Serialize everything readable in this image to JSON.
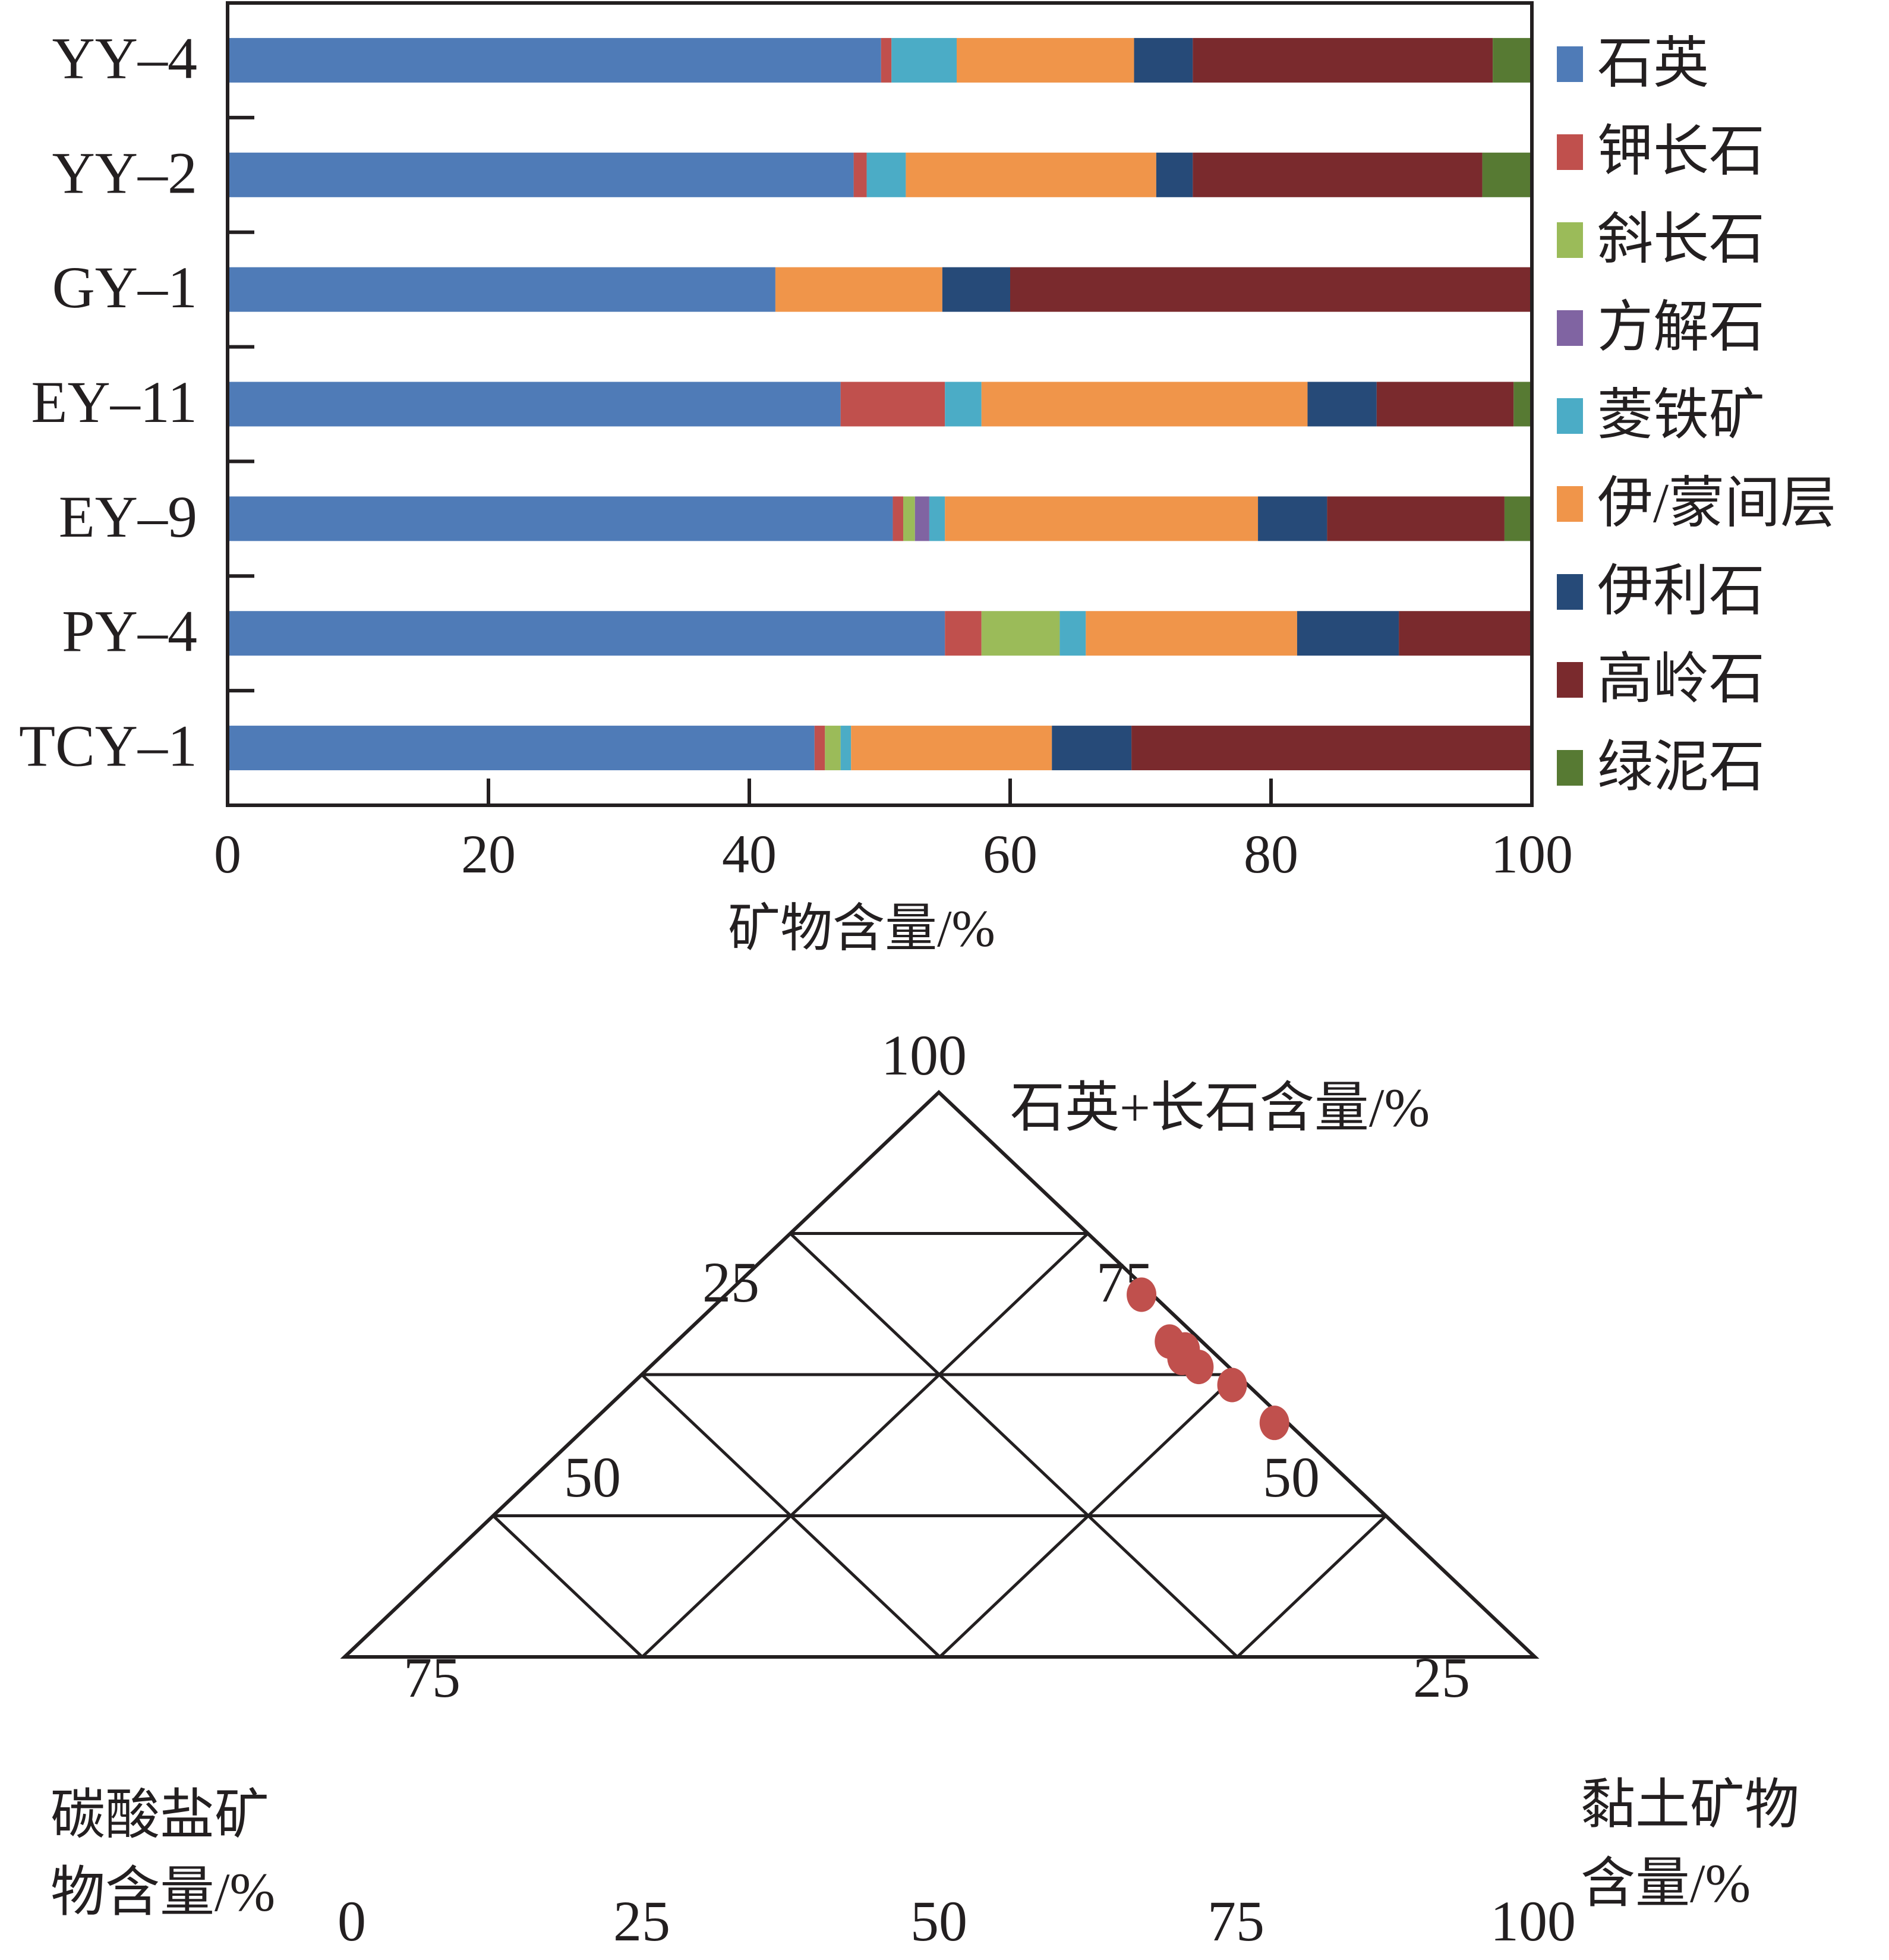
{
  "chart_data": [
    {
      "type": "bar",
      "orientation": "horizontal",
      "stacked": true,
      "categories": [
        "YY–4",
        "YY–2",
        "GY–1",
        "EY–11",
        "EY–9",
        "PY–4",
        "TCY–1"
      ],
      "xlabel": "矿物含量/%",
      "ylabel": "",
      "xlim": [
        0,
        100
      ],
      "xticks": [
        "0",
        "20",
        "40",
        "60",
        "80",
        "100"
      ],
      "legend_position": "right",
      "series": [
        {
          "name": "石英",
          "color": "#4f7bb7",
          "values": [
            50.1,
            48.0,
            42.0,
            47.0,
            51.0,
            55.0,
            45.0
          ]
        },
        {
          "name": "钾长石",
          "color": "#c0504d",
          "values": [
            0.8,
            1.0,
            0,
            8.0,
            0.8,
            2.8,
            0.8
          ]
        },
        {
          "name": "斜长石",
          "color": "#9bbb59",
          "values": [
            0,
            0,
            0,
            0,
            0.9,
            6.0,
            1.2
          ]
        },
        {
          "name": "方解石",
          "color": "#8064a2",
          "values": [
            0,
            0,
            0,
            0,
            1.1,
            0,
            0
          ]
        },
        {
          "name": "菱铁矿",
          "color": "#4bacc6",
          "values": [
            5.0,
            3.0,
            0,
            2.8,
            1.2,
            2.0,
            0.8
          ]
        },
        {
          "name": "伊/蒙间层",
          "color": "#f0954a",
          "values": [
            13.6,
            19.2,
            12.8,
            25.0,
            24.0,
            16.2,
            15.4
          ]
        },
        {
          "name": "伊利石",
          "color": "#264a78",
          "values": [
            4.5,
            2.8,
            5.2,
            5.3,
            5.3,
            7.8,
            6.1
          ]
        },
        {
          "name": "高岭石",
          "color": "#7a2a2d",
          "values": [
            23.0,
            22.2,
            40.0,
            10.5,
            13.6,
            10.2,
            30.7
          ]
        },
        {
          "name": "绿泥石",
          "color": "#577a33",
          "values": [
            3.0,
            3.8,
            0,
            1.4,
            2.1,
            0,
            0
          ]
        }
      ]
    },
    {
      "type": "scatter",
      "subtype": "ternary",
      "axes": [
        {
          "label": "石英+长石含量/%",
          "vertex": "top",
          "ticks": [
            "25",
            "50",
            "75",
            "100"
          ]
        },
        {
          "label": "黏土矿物含量/%",
          "vertex": "right",
          "ticks": [
            "25",
            "50",
            "75",
            "100"
          ]
        },
        {
          "label": "碳酸盐矿物含量/%",
          "vertex": "left",
          "ticks": [
            "0",
            "25",
            "50",
            "75"
          ]
        }
      ],
      "grid_step": 25,
      "label_top": "石英+长石含量/%",
      "label_right_lines": [
        "黏土矿物",
        "含量/%"
      ],
      "label_left_lines": [
        "碳酸盐矿",
        "物含量/%"
      ],
      "point_color": "#c0504d",
      "points": [
        {
          "quartz_feldspar": 65.0,
          "clay": 35.0,
          "carbonate": 0.0
        },
        {
          "quartz_feldspar": 56.7,
          "clay": 41.5,
          "carbonate": 1.8
        },
        {
          "quartz_feldspar": 55.3,
          "clay": 43.5,
          "carbonate": 1.2
        },
        {
          "quartz_feldspar": 53.8,
          "clay": 44.0,
          "carbonate": 2.2
        },
        {
          "quartz_feldspar": 52.2,
          "clay": 46.2,
          "carbonate": 1.6
        },
        {
          "quartz_feldspar": 49.0,
          "clay": 50.6,
          "carbonate": 0.4
        },
        {
          "quartz_feldspar": 42.3,
          "clay": 57.5,
          "carbonate": 0.2
        }
      ],
      "tick_labels": [
        {
          "text": "100",
          "anchor": "middle"
        },
        {
          "text": "75",
          "anchor": "end"
        },
        {
          "text": "50",
          "anchor": "end"
        },
        {
          "text": "25",
          "anchor": "end"
        },
        {
          "text": "0",
          "anchor": "middle"
        }
      ]
    }
  ]
}
